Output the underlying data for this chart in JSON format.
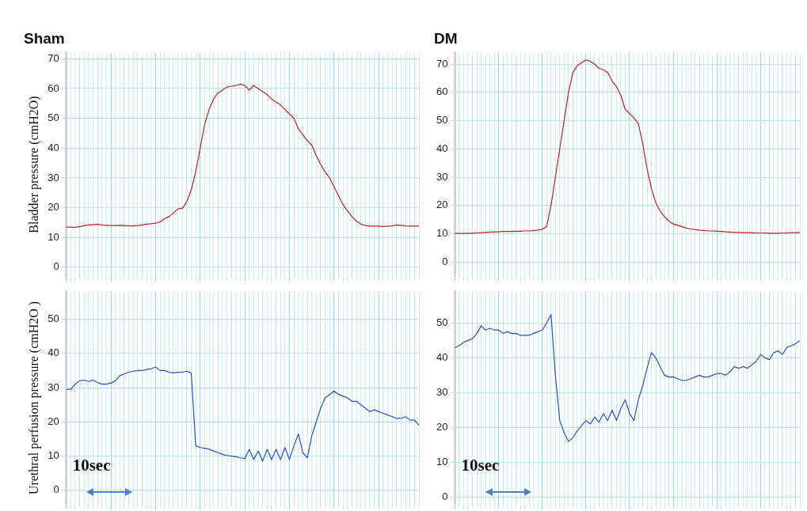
{
  "chart_data": [
    {
      "type": "line",
      "title": "Sham",
      "ylabel": "Bladder pressure (cmH2O)",
      "categories": [
        null,
        null,
        null,
        null,
        null,
        null,
        null,
        null,
        null,
        null,
        null,
        null,
        null,
        null,
        null,
        null,
        null,
        null,
        null,
        null,
        null,
        null,
        null,
        null,
        null,
        null,
        null,
        null,
        null,
        null,
        null,
        null,
        null,
        null,
        null,
        null,
        null,
        null,
        null,
        null,
        null,
        null,
        null,
        null,
        null,
        null,
        null,
        null,
        null,
        null,
        null,
        null,
        null,
        null,
        null,
        null,
        null,
        null,
        null,
        null,
        null,
        null,
        null,
        null,
        null,
        null,
        null,
        null,
        null,
        null,
        null,
        null,
        null,
        null,
        null,
        null,
        null,
        null,
        null,
        null
      ],
      "ylim": [
        -3,
        72
      ],
      "yticks": [
        0,
        10,
        20,
        30,
        40,
        50,
        60,
        70
      ],
      "grid": true,
      "tick_labels": "y",
      "marker": "none",
      "series": [
        {
          "color": "#b0242c",
          "values": [
            13.5,
            13.5,
            13.4,
            13.6,
            14,
            14.2,
            14.3,
            14.4,
            14.2,
            14.1,
            14,
            14,
            14.1,
            14,
            13.9,
            13.9,
            14,
            14.2,
            14.5,
            14.6,
            14.8,
            15.2,
            16.3,
            17,
            18.2,
            19.6,
            19.8,
            22,
            26,
            32,
            40,
            48,
            53,
            56.5,
            58.5,
            59.5,
            60.5,
            60.8,
            61,
            61.5,
            61,
            59.5,
            61,
            60,
            59,
            58,
            56.5,
            55.5,
            54.5,
            53,
            51.5,
            50,
            46.5,
            44.5,
            42.5,
            41,
            37.5,
            34.5,
            32,
            30,
            27,
            24,
            21,
            19,
            17,
            15.5,
            14.5,
            14,
            13.8,
            13.8,
            13.8,
            13.7,
            13.8,
            13.9,
            14.2,
            14.1,
            13.9,
            13.8,
            13.8,
            13.9
          ]
        }
      ]
    },
    {
      "type": "line",
      "title": "DM",
      "categories": [
        null,
        null,
        null,
        null,
        null,
        null,
        null,
        null,
        null,
        null,
        null,
        null,
        null,
        null,
        null,
        null,
        null,
        null,
        null,
        null,
        null,
        null,
        null,
        null,
        null,
        null,
        null,
        null,
        null,
        null,
        null,
        null,
        null,
        null,
        null,
        null,
        null,
        null,
        null,
        null,
        null,
        null,
        null,
        null,
        null,
        null,
        null,
        null,
        null,
        null,
        null,
        null,
        null,
        null,
        null,
        null,
        null,
        null,
        null,
        null,
        null,
        null,
        null,
        null,
        null,
        null,
        null,
        null,
        null,
        null,
        null,
        null,
        null,
        null,
        null,
        null,
        null,
        null,
        null,
        null
      ],
      "ylim": [
        -5,
        74
      ],
      "yticks": [
        0,
        10,
        20,
        30,
        40,
        50,
        60,
        70
      ],
      "grid": true,
      "tick_labels": "y",
      "marker": "none",
      "series": [
        {
          "color": "#b0242c",
          "values": [
            10.2,
            10.1,
            10.1,
            10.2,
            10.2,
            10.3,
            10.4,
            10.5,
            10.6,
            10.7,
            10.7,
            10.8,
            10.8,
            10.8,
            10.9,
            10.9,
            11,
            11,
            11.1,
            11.3,
            11.6,
            12.5,
            20,
            30,
            40,
            50,
            60,
            67,
            69.5,
            70.5,
            71.5,
            71,
            70,
            68.5,
            68,
            67,
            64,
            62,
            59,
            54,
            52.5,
            51,
            49,
            42,
            33,
            26,
            21,
            18,
            16,
            14.5,
            13.5,
            13,
            12.5,
            12,
            11.7,
            11.5,
            11.3,
            11.2,
            11,
            11,
            10.9,
            10.8,
            10.7,
            10.6,
            10.5,
            10.5,
            10.4,
            10.4,
            10.4,
            10.3,
            10.3,
            10.3,
            10.2,
            10.2,
            10.2,
            10.3,
            10.3,
            10.4,
            10.4,
            10.5
          ]
        }
      ]
    },
    {
      "type": "line",
      "ylabel": "Urethral perfusion pressure (cmH2O )",
      "annotations": [
        "10sec"
      ],
      "categories": [
        null,
        null,
        null,
        null,
        null,
        null,
        null,
        null,
        null,
        null,
        null,
        null,
        null,
        null,
        null,
        null,
        null,
        null,
        null,
        null,
        null,
        null,
        null,
        null,
        null,
        null,
        null,
        null,
        null,
        null,
        null,
        null,
        null,
        null,
        null,
        null,
        null,
        null,
        null,
        null,
        null,
        null,
        null,
        null,
        null,
        null,
        null,
        null,
        null,
        null,
        null,
        null,
        null,
        null,
        null,
        null,
        null,
        null,
        null,
        null,
        null,
        null,
        null,
        null,
        null,
        null,
        null,
        null,
        null,
        null,
        null,
        null,
        null,
        null,
        null,
        null,
        null,
        null,
        null,
        null
      ],
      "ylim": [
        -4,
        58
      ],
      "yticks": [
        0,
        10,
        20,
        30,
        40,
        50
      ],
      "grid": true,
      "tick_labels": "y",
      "marker": "none",
      "series": [
        {
          "color": "#2b50b8",
          "values": [
            29.5,
            29.5,
            31,
            32,
            32.2,
            31.8,
            32.2,
            31.5,
            31,
            31,
            31.3,
            32,
            33.5,
            34,
            34.5,
            34.8,
            35,
            35,
            35.3,
            35.5,
            36,
            35,
            35,
            34.5,
            34.3,
            34.5,
            34.5,
            34.8,
            34.2,
            13,
            12.5,
            12.3,
            12,
            11.5,
            11,
            10.5,
            10.2,
            10,
            9.8,
            9.5,
            9.3,
            12,
            9,
            11.5,
            8.5,
            12,
            9,
            12,
            9,
            12.5,
            9,
            13,
            16.5,
            11,
            9.5,
            16,
            20,
            24,
            27,
            28,
            29,
            28,
            27.5,
            27,
            26,
            26,
            25,
            24,
            23,
            23.5,
            23,
            22.5,
            22,
            21.5,
            21,
            21,
            21.5,
            20.5,
            20.5,
            19
          ]
        }
      ]
    },
    {
      "type": "line",
      "annotations": [
        "10sec"
      ],
      "categories": [
        null,
        null,
        null,
        null,
        null,
        null,
        null,
        null,
        null,
        null,
        null,
        null,
        null,
        null,
        null,
        null,
        null,
        null,
        null,
        null,
        null,
        null,
        null,
        null,
        null,
        null,
        null,
        null,
        null,
        null,
        null,
        null,
        null,
        null,
        null,
        null,
        null,
        null,
        null,
        null,
        null,
        null,
        null,
        null,
        null,
        null,
        null,
        null,
        null,
        null,
        null,
        null,
        null,
        null,
        null,
        null,
        null,
        null,
        null,
        null,
        null,
        null,
        null,
        null,
        null,
        null,
        null,
        null,
        null,
        null,
        null,
        null,
        null,
        null,
        null,
        null,
        null,
        null,
        null,
        null
      ],
      "ylim": [
        -2,
        59
      ],
      "yticks": [
        0,
        10,
        20,
        30,
        40,
        50
      ],
      "grid": true,
      "tick_labels": "y",
      "marker": "none",
      "series": [
        {
          "color": "#2b50b8",
          "values": [
            43,
            43.5,
            44.5,
            45,
            45.5,
            47,
            49.2,
            48,
            48.5,
            48,
            48,
            47,
            47.5,
            47,
            47,
            46.5,
            46.5,
            46.5,
            47,
            47.5,
            48,
            50,
            52.5,
            35,
            22,
            18.5,
            16,
            17,
            19,
            20.5,
            22,
            21,
            23,
            21.5,
            24,
            22,
            25,
            22,
            25.5,
            28,
            24,
            22,
            28,
            32,
            37,
            41.5,
            40,
            37.5,
            35,
            34.5,
            34.5,
            34,
            33.5,
            33.5,
            34,
            34.5,
            35,
            34.5,
            34.5,
            35,
            35.5,
            35.5,
            35,
            36,
            37.5,
            37,
            37.5,
            37,
            38,
            39,
            41,
            40,
            39.5,
            41.5,
            42,
            41,
            43,
            43.5,
            44,
            45
          ]
        }
      ]
    }
  ]
}
